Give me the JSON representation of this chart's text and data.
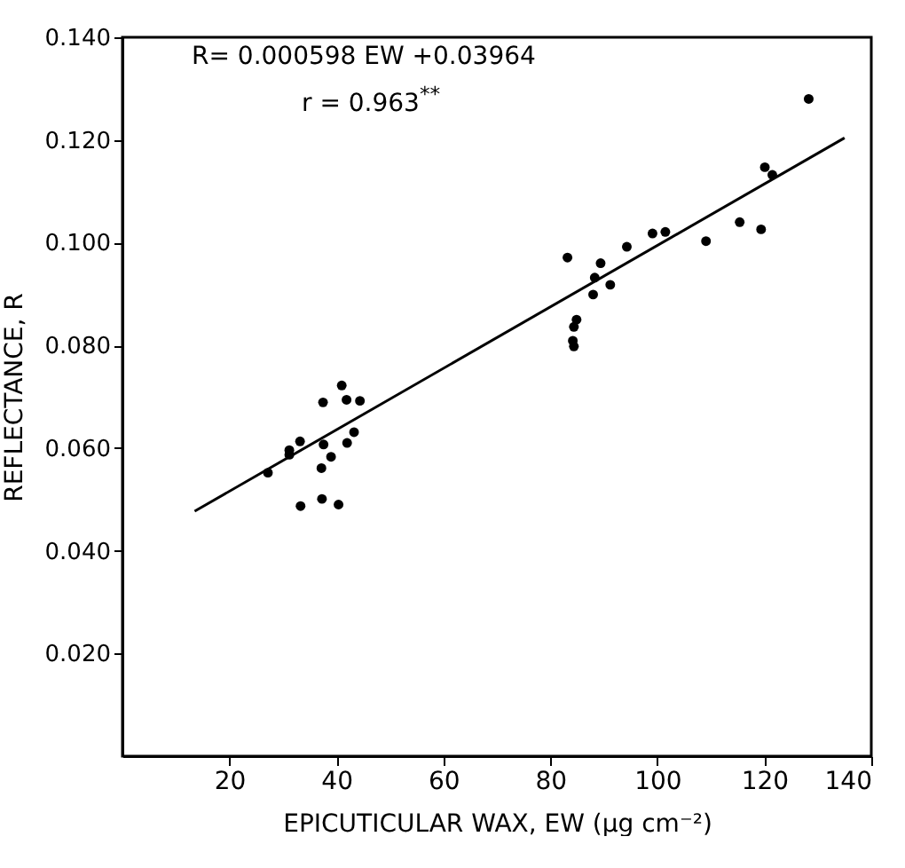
{
  "chart_data": {
    "type": "scatter",
    "xlabel": "EPICUTICULAR WAX, EW (µg cm⁻²)",
    "ylabel": "REFLECTANCE, R",
    "annotations": [
      "R= 0.000598 EW +0.03964",
      "r = 0.963$^{**}$"
    ],
    "xlim": [
      0,
      140
    ],
    "xticks": [
      20,
      40,
      60,
      80,
      100,
      120,
      140
    ],
    "ylim": [
      0,
      0.14
    ],
    "yticks": [
      {
        "value": 0.02,
        "label": "0.020"
      },
      {
        "value": 0.04,
        "label": "0.040"
      },
      {
        "value": 0.06,
        "label": "0.060"
      },
      {
        "value": 0.08,
        "label": "0.080"
      },
      {
        "value": 0.1,
        "label": "0.100"
      },
      {
        "value": 0.12,
        "label": "0.120"
      },
      {
        "value": 0.14,
        "label": "0.140"
      }
    ],
    "grid": false,
    "marker": "circle",
    "series": [
      {
        "color": "#000000",
        "x": [
          27.2,
          31.2,
          31.2,
          33.2,
          33.3,
          37.5,
          37.6,
          37.2,
          39.0,
          37.3,
          40.4,
          41.0,
          41.9,
          42.0,
          43.3,
          44.4,
          128.3,
          120.1,
          121.5,
          115.4,
          119.4,
          109.1,
          99.1,
          101.5,
          94.3,
          83.2,
          89.4,
          88.3,
          88.0,
          91.2,
          84.9,
          84.4,
          84.2,
          84.4
        ],
        "values": [
          0.0552,
          0.0596,
          0.0587,
          0.0613,
          0.0487,
          0.0689,
          0.0607,
          0.0561,
          0.0583,
          0.0501,
          0.049,
          0.0722,
          0.0694,
          0.061,
          0.0631,
          0.0692,
          0.128,
          0.1147,
          0.1132,
          0.104,
          0.1026,
          0.1003,
          0.1018,
          0.1021,
          0.0992,
          0.0971,
          0.096,
          0.0932,
          0.0899,
          0.0918,
          0.085,
          0.0836,
          0.0809,
          0.0798
        ]
      },
      {
        "type": "line",
        "color": "#000000",
        "x": [
          13.5,
          135
        ],
        "values": [
          0.0477,
          0.1204
        ],
        "marker": "none",
        "line_style": "solid"
      }
    ]
  }
}
